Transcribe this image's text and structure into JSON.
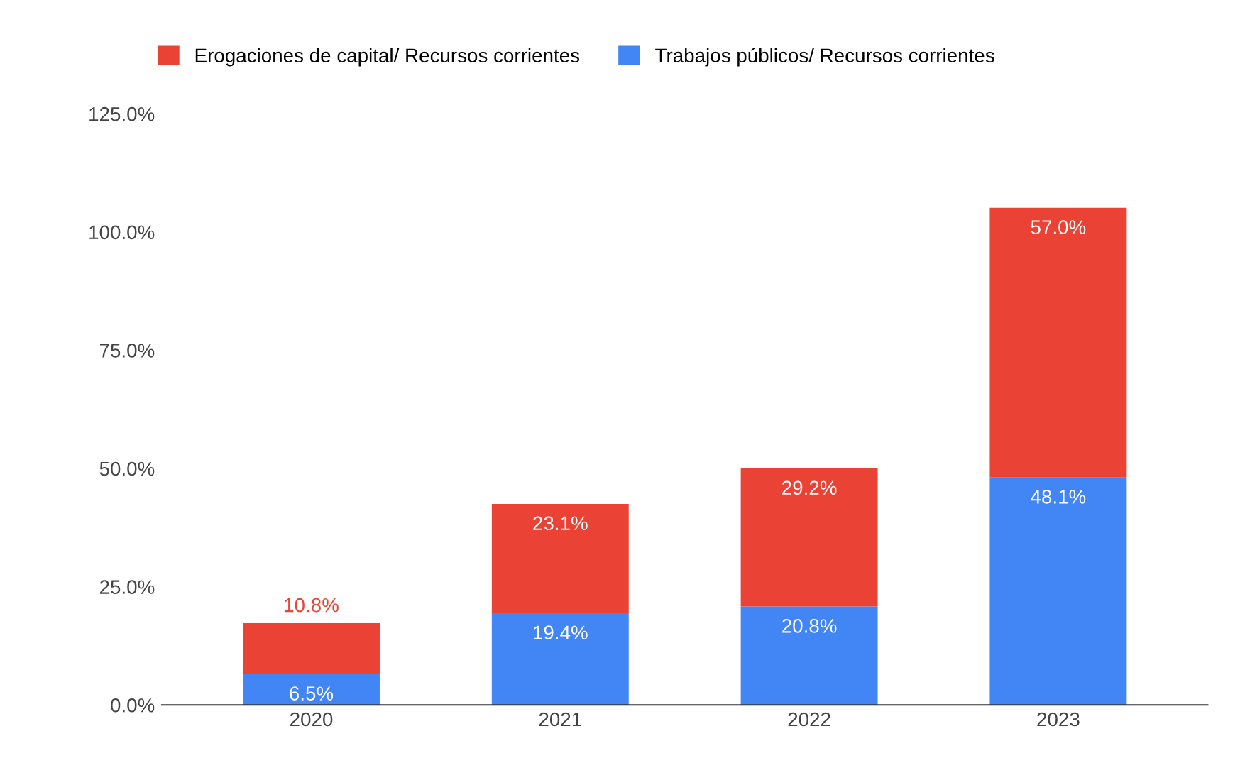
{
  "chart_data": {
    "type": "bar",
    "stacked": true,
    "categories": [
      "2020",
      "2021",
      "2022",
      "2023"
    ],
    "series": [
      {
        "name": "Trabajos públicos/ Recursos corrientes",
        "color": "#4285f4",
        "values": [
          6.5,
          19.4,
          20.8,
          48.1
        ],
        "value_labels": [
          "6.5%",
          "19.4%",
          "20.8%",
          "48.1%"
        ]
      },
      {
        "name": "Erogaciones de capital/ Recursos corrientes",
        "color": "#ea4335",
        "values": [
          10.8,
          23.1,
          29.2,
          57.0
        ],
        "value_labels": [
          "10.8%",
          "23.1%",
          "29.2%",
          "57.0%"
        ]
      }
    ],
    "ylim": [
      0,
      125
    ],
    "yticks": [
      {
        "value": 0,
        "label": "0.0%"
      },
      {
        "value": 25,
        "label": "25.0%"
      },
      {
        "value": 50,
        "label": "50.0%"
      },
      {
        "value": 75,
        "label": "75.0%"
      },
      {
        "value": 100,
        "label": "100.0%"
      },
      {
        "value": 125,
        "label": "125.0%"
      }
    ],
    "grid": false,
    "legend": "top left"
  }
}
